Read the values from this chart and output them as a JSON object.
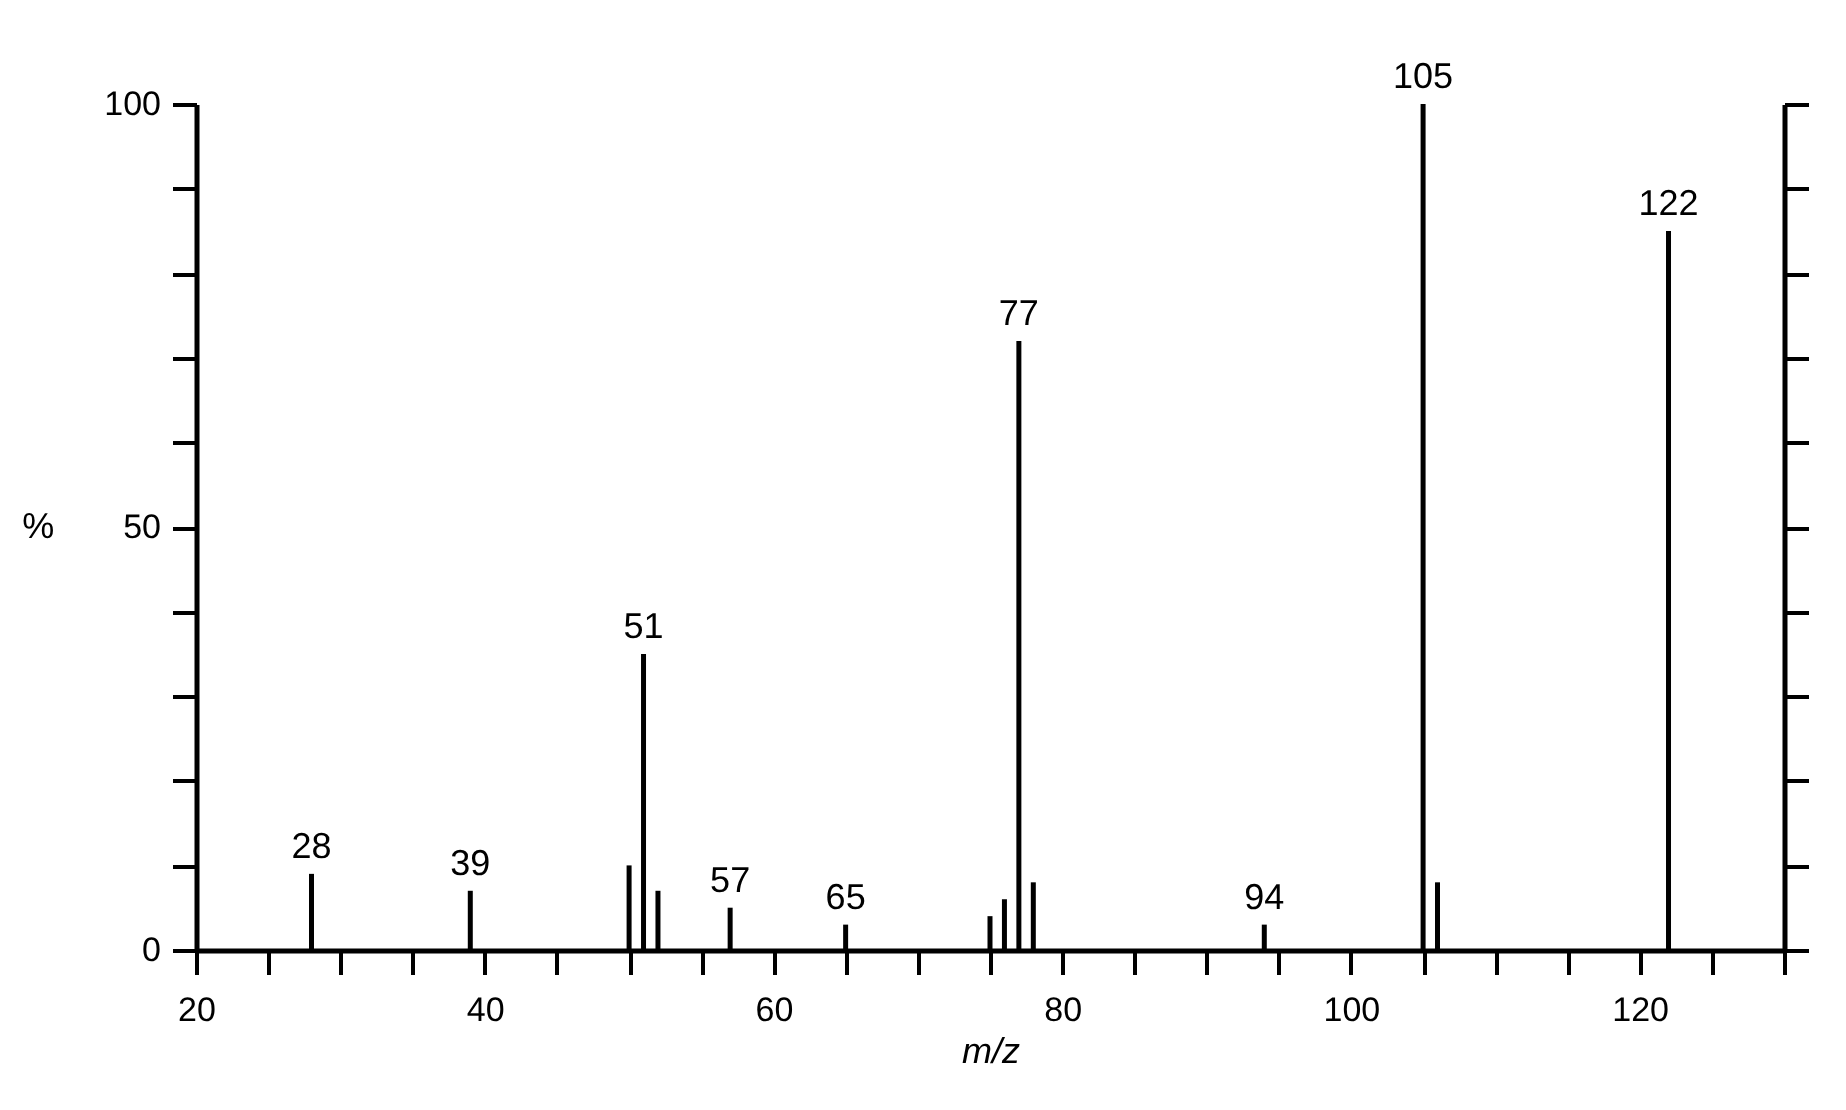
{
  "chart_data": {
    "type": "bar",
    "xlabel": "m/z",
    "ylabel": "%",
    "x": [
      28,
      39,
      50,
      51,
      52,
      57,
      65,
      75,
      76,
      77,
      78,
      94,
      105,
      106,
      122
    ],
    "values": [
      9,
      7,
      10,
      35,
      7,
      5,
      3,
      4,
      6,
      72,
      8,
      3,
      100,
      8,
      85
    ],
    "color": "#000000",
    "xlim": [
      20,
      130
    ],
    "xticks": [
      20,
      {
        "value": 25,
        "label": null
      },
      {
        "value": 30,
        "label": null
      },
      {
        "value": 35,
        "label": null
      },
      40,
      {
        "value": 45,
        "label": null
      },
      {
        "value": 50,
        "label": null
      },
      {
        "value": 55,
        "label": null
      },
      60,
      {
        "value": 65,
        "label": null
      },
      {
        "value": 70,
        "label": null
      },
      {
        "value": 75,
        "label": null
      },
      80,
      {
        "value": 85,
        "label": null
      },
      {
        "value": 90,
        "label": null
      },
      {
        "value": 95,
        "label": null
      },
      100,
      {
        "value": 105,
        "label": null
      },
      {
        "value": 110,
        "label": null
      },
      {
        "value": 115,
        "label": null
      },
      120,
      {
        "value": 125,
        "label": null
      },
      {
        "value": 130,
        "label": null
      }
    ],
    "ylim": [
      0,
      100
    ],
    "yticks": [
      0,
      {
        "value": 10,
        "label": null
      },
      {
        "value": 20,
        "label": null
      },
      {
        "value": 30,
        "label": null
      },
      {
        "value": 40,
        "label": null
      },
      50,
      {
        "value": 60,
        "label": null
      },
      {
        "value": 70,
        "label": null
      },
      {
        "value": 80,
        "label": null
      },
      {
        "value": 90,
        "label": null
      },
      100
    ],
    "annotations": [
      {
        "text": "28",
        "x": 28,
        "y": 9
      },
      {
        "text": "39",
        "x": 39,
        "y": 7
      },
      {
        "text": "51",
        "x": 51,
        "y": 35
      },
      {
        "text": "57",
        "x": 57,
        "y": 5
      },
      {
        "text": "65",
        "x": 65,
        "y": 3
      },
      {
        "text": "77",
        "x": 77,
        "y": 72
      },
      {
        "text": "94",
        "x": 94,
        "y": 3
      },
      {
        "text": "105",
        "x": 105,
        "y": 100
      },
      {
        "text": "122",
        "x": 122,
        "y": 85
      }
    ]
  }
}
